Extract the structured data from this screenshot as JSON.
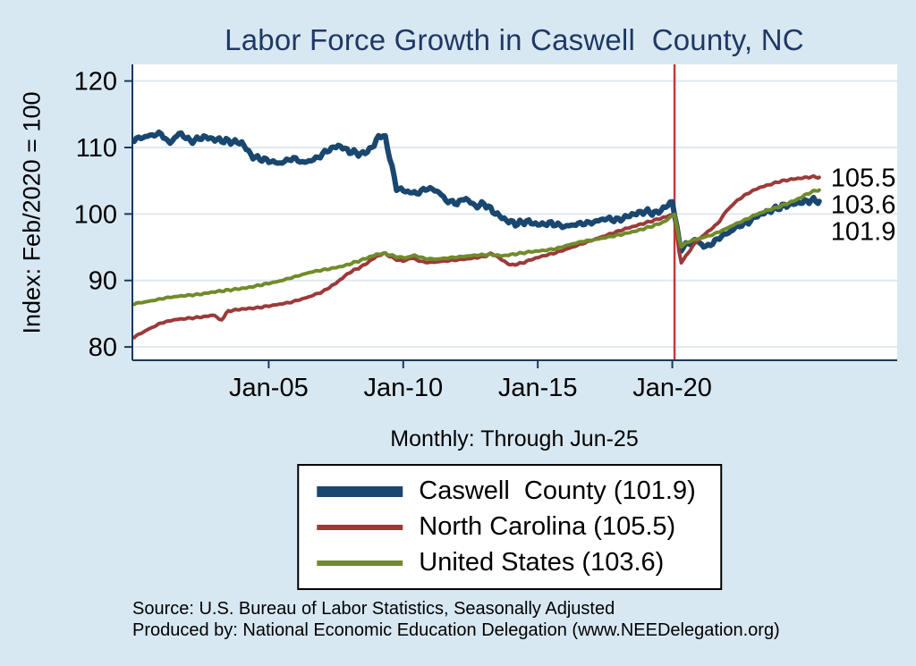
{
  "colors": {
    "background": "#d8e8f2",
    "plot_bg": "#ffffff",
    "grid": "#dde9f2",
    "axis": "#1a3a5f",
    "title": "#1f3864",
    "text": "#000000",
    "reference_line": "#c83737"
  },
  "footer": {
    "source_line1": "Source: U.S. Bureau of Labor Statistics, Seasonally Adjusted",
    "source_line2": "Produced by: National Economic Education Delegation (www.NEEDelegation.org)"
  },
  "chart_data": {
    "type": "line",
    "title": "Labor Force Growth in Caswell  County, NC",
    "subtitle": "Monthly: Through Jun-25",
    "xlabel": "",
    "ylabel": "Index: Feb/2020 = 100",
    "xlim": [
      2000,
      2025.5
    ],
    "ylim": [
      78,
      122.5
    ],
    "grid": "horizontal",
    "legend_position": "bottom",
    "y_ticks": [
      80,
      90,
      100,
      110,
      120
    ],
    "x_ticks": [
      {
        "t": 2005,
        "label": "Jan-05"
      },
      {
        "t": 2010,
        "label": "Jan-10"
      },
      {
        "t": 2015,
        "label": "Jan-15"
      },
      {
        "t": 2020,
        "label": "Jan-20"
      }
    ],
    "reference_line_x": 2020.083,
    "series": [
      {
        "id": "caswell-county",
        "name": "Caswell  County",
        "legend": "Caswell  County (101.9)",
        "end_label": "101.9",
        "end_value": 101.9,
        "color": "#1a476f",
        "width": 6,
        "jitter": 0.45,
        "points": [
          [
            2000.0,
            111.2
          ],
          [
            2000.6,
            111.8
          ],
          [
            2001.0,
            112.1
          ],
          [
            2001.3,
            110.6
          ],
          [
            2001.7,
            112.2
          ],
          [
            2002.1,
            110.9
          ],
          [
            2002.6,
            111.6
          ],
          [
            2003.0,
            111.2
          ],
          [
            2003.6,
            110.9
          ],
          [
            2004.0,
            110.7
          ],
          [
            2004.4,
            108.6
          ],
          [
            2004.9,
            108.1
          ],
          [
            2005.4,
            107.6
          ],
          [
            2005.9,
            108.4
          ],
          [
            2006.3,
            107.7
          ],
          [
            2006.8,
            108.4
          ],
          [
            2007.2,
            109.6
          ],
          [
            2007.6,
            110.3
          ],
          [
            2008.0,
            109.4
          ],
          [
            2008.5,
            109.0
          ],
          [
            2008.9,
            110.2
          ],
          [
            2009.1,
            111.9
          ],
          [
            2009.35,
            111.4
          ],
          [
            2009.55,
            107.5
          ],
          [
            2009.75,
            103.9
          ],
          [
            2010.1,
            103.4
          ],
          [
            2010.5,
            103.1
          ],
          [
            2010.9,
            103.9
          ],
          [
            2011.3,
            103.4
          ],
          [
            2011.6,
            102.0
          ],
          [
            2012.0,
            101.6
          ],
          [
            2012.3,
            102.4
          ],
          [
            2012.7,
            101.1
          ],
          [
            2013.0,
            101.6
          ],
          [
            2013.4,
            100.2
          ],
          [
            2013.8,
            99.1
          ],
          [
            2014.2,
            98.5
          ],
          [
            2014.6,
            98.9
          ],
          [
            2015.0,
            98.4
          ],
          [
            2015.5,
            98.6
          ],
          [
            2016.0,
            98.1
          ],
          [
            2016.5,
            98.5
          ],
          [
            2017.0,
            98.7
          ],
          [
            2017.5,
            99.3
          ],
          [
            2018.0,
            99.1
          ],
          [
            2018.5,
            99.9
          ],
          [
            2019.0,
            100.4
          ],
          [
            2019.4,
            100.1
          ],
          [
            2019.8,
            101.2
          ],
          [
            2020.0,
            101.9
          ],
          [
            2020.083,
            100.0
          ],
          [
            2020.3,
            94.7
          ],
          [
            2020.6,
            95.6
          ],
          [
            2020.9,
            96.1
          ],
          [
            2021.2,
            95.0
          ],
          [
            2021.5,
            95.6
          ],
          [
            2021.8,
            96.6
          ],
          [
            2022.1,
            97.2
          ],
          [
            2022.4,
            98.1
          ],
          [
            2022.8,
            98.7
          ],
          [
            2023.1,
            99.6
          ],
          [
            2023.5,
            100.3
          ],
          [
            2023.9,
            100.9
          ],
          [
            2024.3,
            101.4
          ],
          [
            2024.7,
            101.7
          ],
          [
            2025.0,
            101.9
          ],
          [
            2025.2,
            102.1
          ],
          [
            2025.46,
            101.9
          ]
        ]
      },
      {
        "id": "north-carolina",
        "name": "North Carolina",
        "legend": "North Carolina (105.5)",
        "end_label": "105.5",
        "end_value": 105.5,
        "color": "#9c3a3a",
        "width": 4,
        "jitter": 0.14,
        "points": [
          [
            2000.0,
            81.5
          ],
          [
            2000.5,
            82.6
          ],
          [
            2001.0,
            83.6
          ],
          [
            2001.5,
            84.1
          ],
          [
            2002.0,
            84.3
          ],
          [
            2002.5,
            84.5
          ],
          [
            2003.0,
            84.8
          ],
          [
            2003.2,
            83.9
          ],
          [
            2003.5,
            85.4
          ],
          [
            2004.0,
            85.7
          ],
          [
            2004.6,
            85.9
          ],
          [
            2005.2,
            86.3
          ],
          [
            2005.8,
            86.7
          ],
          [
            2006.4,
            87.4
          ],
          [
            2007.0,
            88.3
          ],
          [
            2007.5,
            89.6
          ],
          [
            2008.0,
            91.2
          ],
          [
            2008.5,
            92.2
          ],
          [
            2009.0,
            93.6
          ],
          [
            2009.3,
            94.1
          ],
          [
            2009.7,
            93.2
          ],
          [
            2010.0,
            92.9
          ],
          [
            2010.3,
            93.4
          ],
          [
            2010.7,
            92.8
          ],
          [
            2011.0,
            92.7
          ],
          [
            2011.5,
            92.9
          ],
          [
            2012.0,
            93.1
          ],
          [
            2012.5,
            93.3
          ],
          [
            2013.0,
            93.6
          ],
          [
            2013.3,
            94.1
          ],
          [
            2013.7,
            93.0
          ],
          [
            2014.0,
            92.3
          ],
          [
            2014.4,
            92.6
          ],
          [
            2014.8,
            93.2
          ],
          [
            2015.2,
            93.7
          ],
          [
            2015.7,
            94.2
          ],
          [
            2016.2,
            94.9
          ],
          [
            2016.7,
            95.6
          ],
          [
            2017.2,
            96.3
          ],
          [
            2017.7,
            97.0
          ],
          [
            2018.2,
            97.7
          ],
          [
            2018.7,
            98.3
          ],
          [
            2019.2,
            98.9
          ],
          [
            2019.7,
            99.5
          ],
          [
            2020.083,
            100.0
          ],
          [
            2020.3,
            92.6
          ],
          [
            2020.5,
            93.6
          ],
          [
            2020.8,
            95.4
          ],
          [
            2021.1,
            96.6
          ],
          [
            2021.4,
            97.6
          ],
          [
            2021.7,
            98.6
          ],
          [
            2022.0,
            100.4
          ],
          [
            2022.4,
            102.0
          ],
          [
            2022.8,
            103.1
          ],
          [
            2023.2,
            103.9
          ],
          [
            2023.6,
            104.4
          ],
          [
            2024.0,
            104.9
          ],
          [
            2024.4,
            105.2
          ],
          [
            2024.8,
            105.4
          ],
          [
            2025.2,
            105.6
          ],
          [
            2025.46,
            105.5
          ]
        ]
      },
      {
        "id": "united-states",
        "name": "United States",
        "legend": "United States (103.6)",
        "end_label": "103.6",
        "end_value": 103.6,
        "color": "#708c2a",
        "width": 4,
        "jitter": 0.14,
        "points": [
          [
            2000.0,
            86.5
          ],
          [
            2000.6,
            86.9
          ],
          [
            2001.2,
            87.4
          ],
          [
            2001.8,
            87.7
          ],
          [
            2002.4,
            87.9
          ],
          [
            2003.0,
            88.3
          ],
          [
            2003.6,
            88.6
          ],
          [
            2004.2,
            88.9
          ],
          [
            2004.8,
            89.4
          ],
          [
            2005.4,
            89.9
          ],
          [
            2006.0,
            90.6
          ],
          [
            2006.6,
            91.3
          ],
          [
            2007.2,
            91.7
          ],
          [
            2007.8,
            92.2
          ],
          [
            2008.4,
            93.0
          ],
          [
            2009.0,
            93.9
          ],
          [
            2009.3,
            94.1
          ],
          [
            2009.7,
            93.6
          ],
          [
            2010.1,
            93.4
          ],
          [
            2010.4,
            93.8
          ],
          [
            2010.8,
            93.3
          ],
          [
            2011.2,
            93.2
          ],
          [
            2011.7,
            93.4
          ],
          [
            2012.2,
            93.6
          ],
          [
            2012.7,
            93.8
          ],
          [
            2013.2,
            93.9
          ],
          [
            2013.7,
            93.7
          ],
          [
            2014.2,
            94.0
          ],
          [
            2014.7,
            94.3
          ],
          [
            2015.2,
            94.5
          ],
          [
            2015.7,
            94.8
          ],
          [
            2016.2,
            95.4
          ],
          [
            2016.7,
            95.9
          ],
          [
            2017.2,
            96.2
          ],
          [
            2017.7,
            96.6
          ],
          [
            2018.2,
            97.0
          ],
          [
            2018.7,
            97.5
          ],
          [
            2019.2,
            98.1
          ],
          [
            2019.7,
            98.8
          ],
          [
            2020.083,
            100.0
          ],
          [
            2020.3,
            95.1
          ],
          [
            2020.7,
            96.0
          ],
          [
            2021.1,
            96.4
          ],
          [
            2021.5,
            96.9
          ],
          [
            2021.9,
            97.6
          ],
          [
            2022.3,
            98.4
          ],
          [
            2022.7,
            99.1
          ],
          [
            2023.1,
            99.9
          ],
          [
            2023.5,
            100.5
          ],
          [
            2023.9,
            101.0
          ],
          [
            2024.3,
            101.6
          ],
          [
            2024.7,
            102.3
          ],
          [
            2025.0,
            103.0
          ],
          [
            2025.3,
            103.5
          ],
          [
            2025.46,
            103.6
          ]
        ]
      }
    ]
  }
}
